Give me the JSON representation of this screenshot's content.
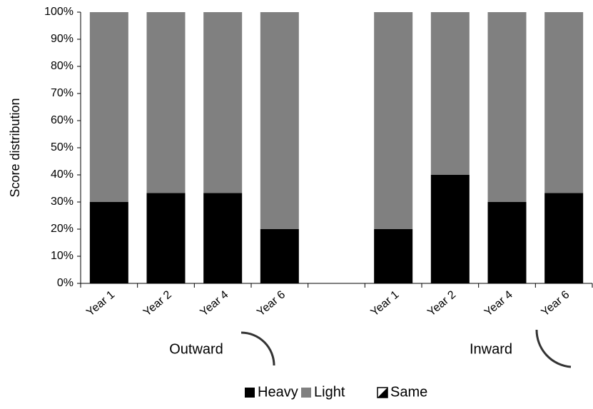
{
  "chart_data": {
    "type": "stacked_bar",
    "y_label": "Score distribution",
    "categories": [
      "Year 1",
      "Year 2",
      "Year 4",
      "Year 6",
      null,
      "Year 1",
      "Year 2",
      "Year 4",
      "Year 6"
    ],
    "series": [
      {
        "name": "Heavy",
        "color": "#000000",
        "values": [
          30,
          33.3,
          33.3,
          20,
          null,
          20,
          40,
          30,
          33.3
        ]
      },
      {
        "name": "Light",
        "color": "#808080",
        "values": [
          70,
          66.7,
          66.7,
          80,
          null,
          80,
          60,
          70,
          66.7
        ]
      },
      {
        "name": "Same",
        "color": "#ffffff",
        "values": [
          0,
          0,
          0,
          0,
          null,
          0,
          0,
          0,
          0
        ]
      }
    ],
    "group_labels": [
      "Outward",
      "Inward"
    ],
    "ylim": [
      0,
      100
    ],
    "yticks": [
      {
        "value": 0,
        "label": "0%"
      },
      {
        "value": 10,
        "label": "10%"
      },
      {
        "value": 20,
        "label": "20%"
      },
      {
        "value": 30,
        "label": "30%"
      },
      {
        "value": 40,
        "label": "40%"
      },
      {
        "value": 50,
        "label": "50%"
      },
      {
        "value": 60,
        "label": "60%"
      },
      {
        "value": 70,
        "label": "70%"
      },
      {
        "value": 80,
        "label": "80%"
      },
      {
        "value": 90,
        "label": "90%"
      },
      {
        "value": 100,
        "label": "100%"
      }
    ],
    "grid": false,
    "legend": "bottom"
  }
}
